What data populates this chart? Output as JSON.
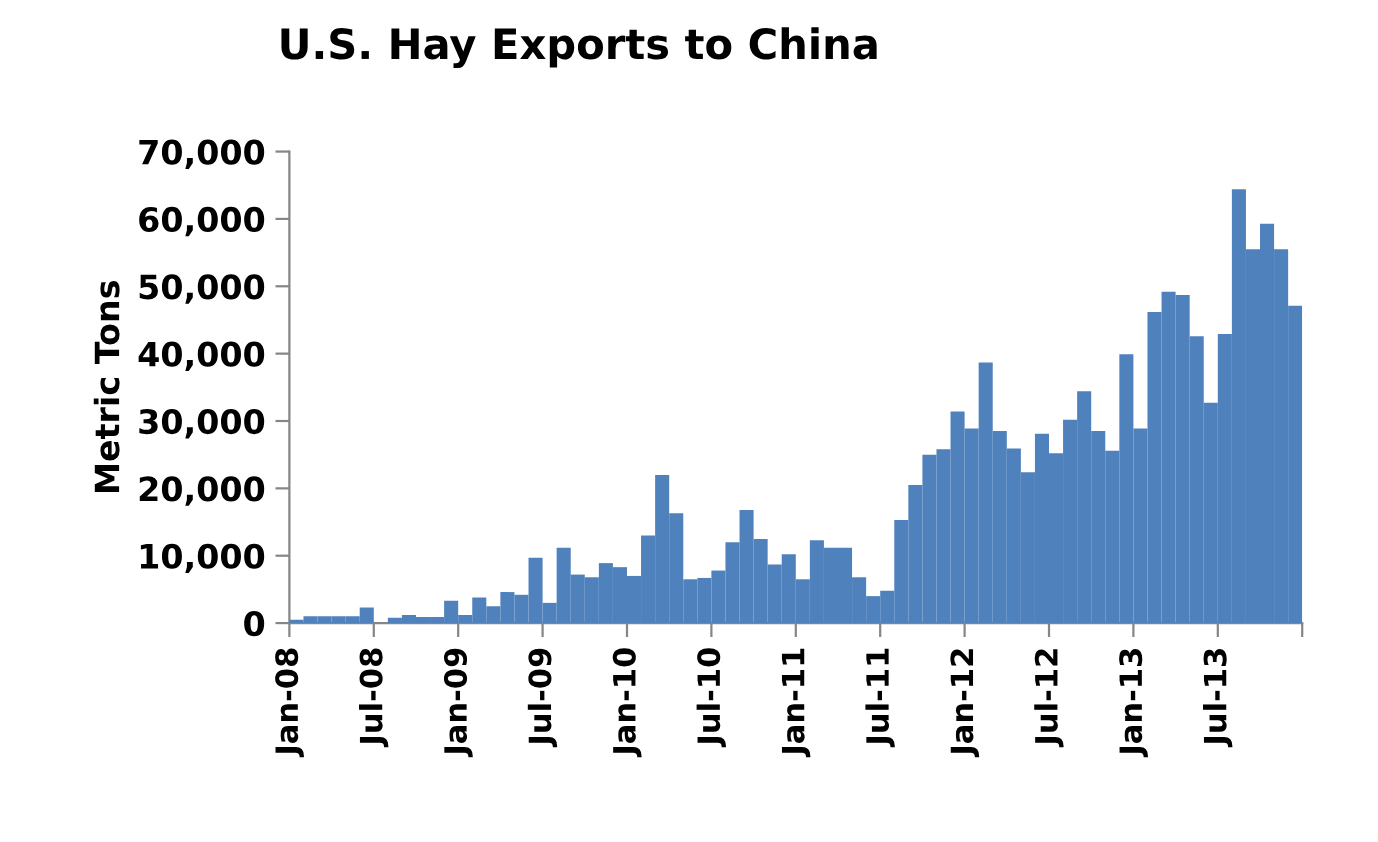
{
  "chart_data": {
    "type": "bar",
    "title": "U.S. Hay Exports to China",
    "ylabel": "Metric Tons",
    "categories": [
      "Jan-08",
      null,
      null,
      null,
      null,
      null,
      "Jul-08",
      null,
      null,
      null,
      null,
      null,
      "Jan-09",
      null,
      null,
      null,
      null,
      null,
      "Jul-09",
      null,
      null,
      null,
      null,
      null,
      "Jan-10",
      null,
      null,
      null,
      null,
      null,
      "Jul-10",
      null,
      null,
      null,
      null,
      null,
      "Jan-11",
      null,
      null,
      null,
      null,
      null,
      "Jul-11",
      null,
      null,
      null,
      null,
      null,
      "Jan-12",
      null,
      null,
      null,
      null,
      null,
      "Jul-12",
      null,
      null,
      null,
      null,
      null,
      "Jan-13",
      null,
      null,
      null,
      null,
      null,
      "Jul-13",
      null,
      null,
      null,
      null,
      null
    ],
    "series": [
      {
        "color": "#4f81bd",
        "values": [
          500,
          1000,
          1000,
          1000,
          1000,
          2300,
          0,
          800,
          1200,
          900,
          900,
          3300,
          1200,
          3800,
          2500,
          4600,
          4200,
          9700,
          3000,
          11200,
          7200,
          6800,
          8900,
          8300,
          7000,
          13000,
          22000,
          16300,
          6500,
          6700,
          7800,
          12000,
          16800,
          12500,
          8700,
          10200,
          6500,
          12300,
          11200,
          11200,
          6800,
          4000,
          4800,
          15300,
          20500,
          25000,
          25800,
          31400,
          28900,
          38700,
          28500,
          25900,
          22400,
          28100,
          25200,
          30200,
          34400,
          28500,
          25600,
          39900,
          28900,
          46200,
          49200,
          48700,
          42600,
          32700,
          42900,
          64400,
          55500,
          59300,
          55500,
          47100
        ]
      }
    ],
    "ylim": [
      0,
      70000
    ],
    "yticks": [
      {
        "value": 0,
        "label": "0"
      },
      {
        "value": 10000,
        "label": "10,000"
      },
      {
        "value": 20000,
        "label": "20,000"
      },
      {
        "value": 30000,
        "label": "30,000"
      },
      {
        "value": 40000,
        "label": "40,000"
      },
      {
        "value": 50000,
        "label": "50,000"
      },
      {
        "value": 60000,
        "label": "60,000"
      },
      {
        "value": 70000,
        "label": "70,000"
      }
    ],
    "grid": false,
    "legend": false
  }
}
